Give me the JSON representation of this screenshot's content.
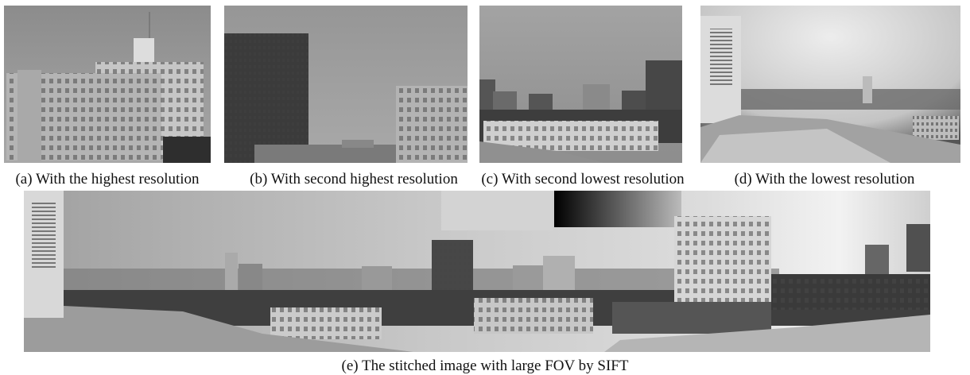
{
  "panels": [
    {
      "caption": "(a) With the highest resolution"
    },
    {
      "caption": "(b) With second highest resolution"
    },
    {
      "caption": "(c) With second lowest resolution"
    },
    {
      "caption": "(d) With the lowest resolution"
    }
  ],
  "stitched": {
    "caption": "(e) The stitched image with large FOV by SIFT"
  }
}
